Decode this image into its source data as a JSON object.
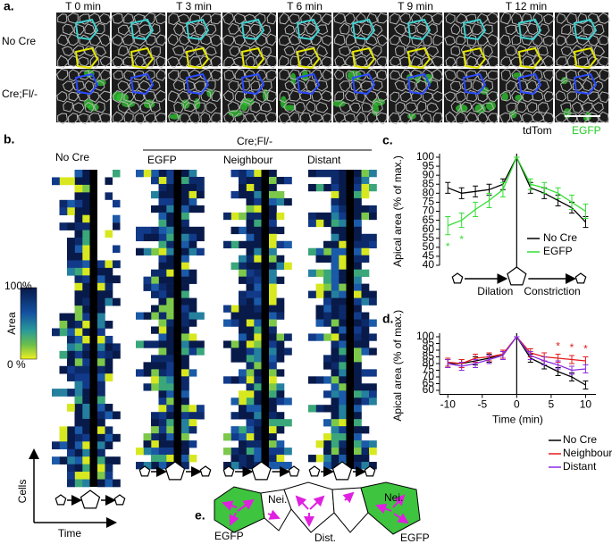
{
  "panel_a": {
    "label": "a.",
    "times": [
      "T 0 min",
      "T 3 min",
      "T 6 min",
      "T 9 min",
      "T 12 min"
    ],
    "rows": [
      "No Cre",
      "Cre;Fl/-"
    ],
    "channels": [
      {
        "name": "tdTom",
        "color": "#000000"
      },
      {
        "name": "EGFP",
        "color": "#22cc22"
      }
    ]
  },
  "panel_b": {
    "label": "b.",
    "header": "Cre;Fl/-",
    "groups": [
      "No Cre",
      "EGFP",
      "Neighbour",
      "Distant"
    ],
    "colorbar": {
      "title": "Area",
      "max_label": "100%",
      "min_label": "0 %"
    },
    "y_axis": "Cells",
    "x_axis": "Time"
  },
  "panel_e": {
    "label": "e.",
    "labels": [
      "Nei.",
      "Nei.",
      "Dist.",
      "EGFP",
      "EGFP"
    ]
  },
  "chart_data": [
    {
      "type": "line",
      "panel_label": "c.",
      "ylabel": "Apical area (% of max.)",
      "x": [
        -10,
        -8,
        -6,
        -4,
        -2,
        0,
        2,
        4,
        6,
        8,
        10
      ],
      "xlim": [
        -11.2,
        11.5
      ],
      "ylim": [
        40,
        100
      ],
      "yticks": [
        40,
        45,
        50,
        55,
        60,
        65,
        70,
        75,
        80,
        85,
        90,
        95,
        100
      ],
      "series": [
        {
          "name": "No Cre",
          "color": "#000000",
          "values": [
            83,
            80,
            81,
            82,
            85,
            100,
            83,
            80,
            76,
            72,
            64
          ],
          "errors": [
            3,
            3,
            3,
            3,
            3,
            0,
            3,
            3,
            3,
            3,
            3
          ]
        },
        {
          "name": "EGFP",
          "color": "#33dd33",
          "values": [
            62,
            65,
            71,
            76,
            82,
            100,
            85,
            83,
            80,
            75,
            70
          ],
          "errors": [
            5,
            4,
            4,
            4,
            4,
            0,
            3,
            3,
            3,
            4,
            4
          ]
        }
      ],
      "significance": {
        "series": 1,
        "text": "*",
        "x": [
          -10,
          -8
        ],
        "side": "below"
      },
      "phase_labels": [
        "Dilation",
        "Constriction"
      ]
    },
    {
      "type": "line",
      "panel_label": "d.",
      "ylabel": "Apical area (% of max.)",
      "xlabel": "Time (min)",
      "x": [
        -10,
        -8,
        -6,
        -4,
        -2,
        0,
        2,
        4,
        6,
        8,
        10
      ],
      "xlim": [
        -11.2,
        11.5
      ],
      "xticks": [
        -10,
        -5,
        0,
        5,
        10
      ],
      "ylim": [
        57,
        100
      ],
      "yticks": [
        60,
        65,
        70,
        75,
        80,
        85,
        90,
        95,
        100
      ],
      "series": [
        {
          "name": "No Cre",
          "color": "#000000",
          "values": [
            80,
            80,
            82,
            84,
            87,
            100,
            84,
            79,
            74,
            70,
            64
          ],
          "errors": [
            3,
            3,
            3,
            3,
            3,
            0,
            3,
            3,
            3,
            3,
            3
          ]
        },
        {
          "name": "Neighbour",
          "color": "#e41a1c",
          "values": [
            81,
            80,
            84,
            85,
            87,
            100,
            88,
            85,
            84,
            83,
            82
          ],
          "errors": [
            3,
            3,
            3,
            3,
            3,
            0,
            3,
            3,
            3,
            3,
            3
          ]
        },
        {
          "name": "Distant",
          "color": "#8a2be2",
          "values": [
            80,
            78,
            80,
            83,
            86,
            100,
            86,
            82,
            79,
            75,
            76
          ],
          "errors": [
            3,
            3,
            3,
            3,
            3,
            0,
            3,
            3,
            3,
            3,
            3
          ]
        }
      ],
      "significance": {
        "series": 1,
        "text": "*",
        "x": [
          6,
          8,
          10
        ],
        "side": "above"
      }
    }
  ]
}
